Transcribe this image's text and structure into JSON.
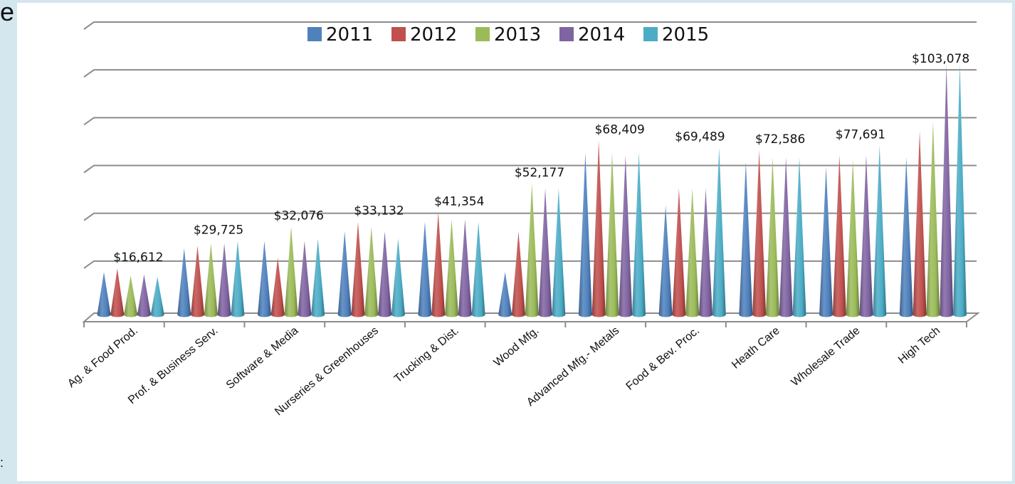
{
  "page": {
    "edge_text_top": "e",
    "edge_text_bottom": ":"
  },
  "chart_data": {
    "type": "bar",
    "style": "3d-cone",
    "title": "",
    "xlabel": "",
    "ylabel": "",
    "ylim": [
      0,
      120000
    ],
    "grid": true,
    "legend_position": "top-center",
    "categories": [
      "Ag. & Food Prod.",
      "Prof. & Business Serv.",
      "Software & Media",
      "Nurseries & Greenhouses",
      "Trucking & Dist.",
      "Wood Mfg.",
      "Advanced Mfg.- Metals",
      "Food &  Bev. Proc.",
      "Heath Care",
      "Wholesale Trade",
      "High Tech"
    ],
    "series": [
      {
        "name": "2011",
        "color": "#4f81bd",
        "values": [
          16000,
          26000,
          29000,
          33000,
          37000,
          16000,
          66000,
          44000,
          62000,
          60000,
          64000
        ]
      },
      {
        "name": "2012",
        "color": "#c0504d",
        "values": [
          17500,
          27000,
          22000,
          37000,
          41000,
          33000,
          71000,
          51000,
          67000,
          65000,
          75000
        ]
      },
      {
        "name": "2013",
        "color": "#9bbb59",
        "values": [
          14500,
          28000,
          35000,
          35000,
          38000,
          53000,
          66000,
          51000,
          64000,
          63000,
          79000
        ]
      },
      {
        "name": "2014",
        "color": "#8064a2",
        "values": [
          15000,
          28000,
          29000,
          33000,
          38000,
          51000,
          65000,
          51000,
          64000,
          65000,
          103000
        ]
      },
      {
        "name": "2015",
        "color": "#4bacc6",
        "values": [
          14000,
          29000,
          30000,
          30000,
          37000,
          51000,
          66000,
          68000,
          64000,
          69000,
          103078
        ]
      }
    ],
    "data_labels": [
      {
        "category_index": 0,
        "text": "$16,612"
      },
      {
        "category_index": 1,
        "text": "$29,725"
      },
      {
        "category_index": 2,
        "text": "$32,076"
      },
      {
        "category_index": 3,
        "text": "$33,132"
      },
      {
        "category_index": 4,
        "text": "$41,354"
      },
      {
        "category_index": 5,
        "text": "$52,177"
      },
      {
        "category_index": 6,
        "text": "$68,409"
      },
      {
        "category_index": 7,
        "text": "$69,489"
      },
      {
        "category_index": 8,
        "text": "$72,586"
      },
      {
        "category_index": 9,
        "text": "$77,691"
      },
      {
        "category_index": 10,
        "text": "$103,078"
      }
    ]
  }
}
